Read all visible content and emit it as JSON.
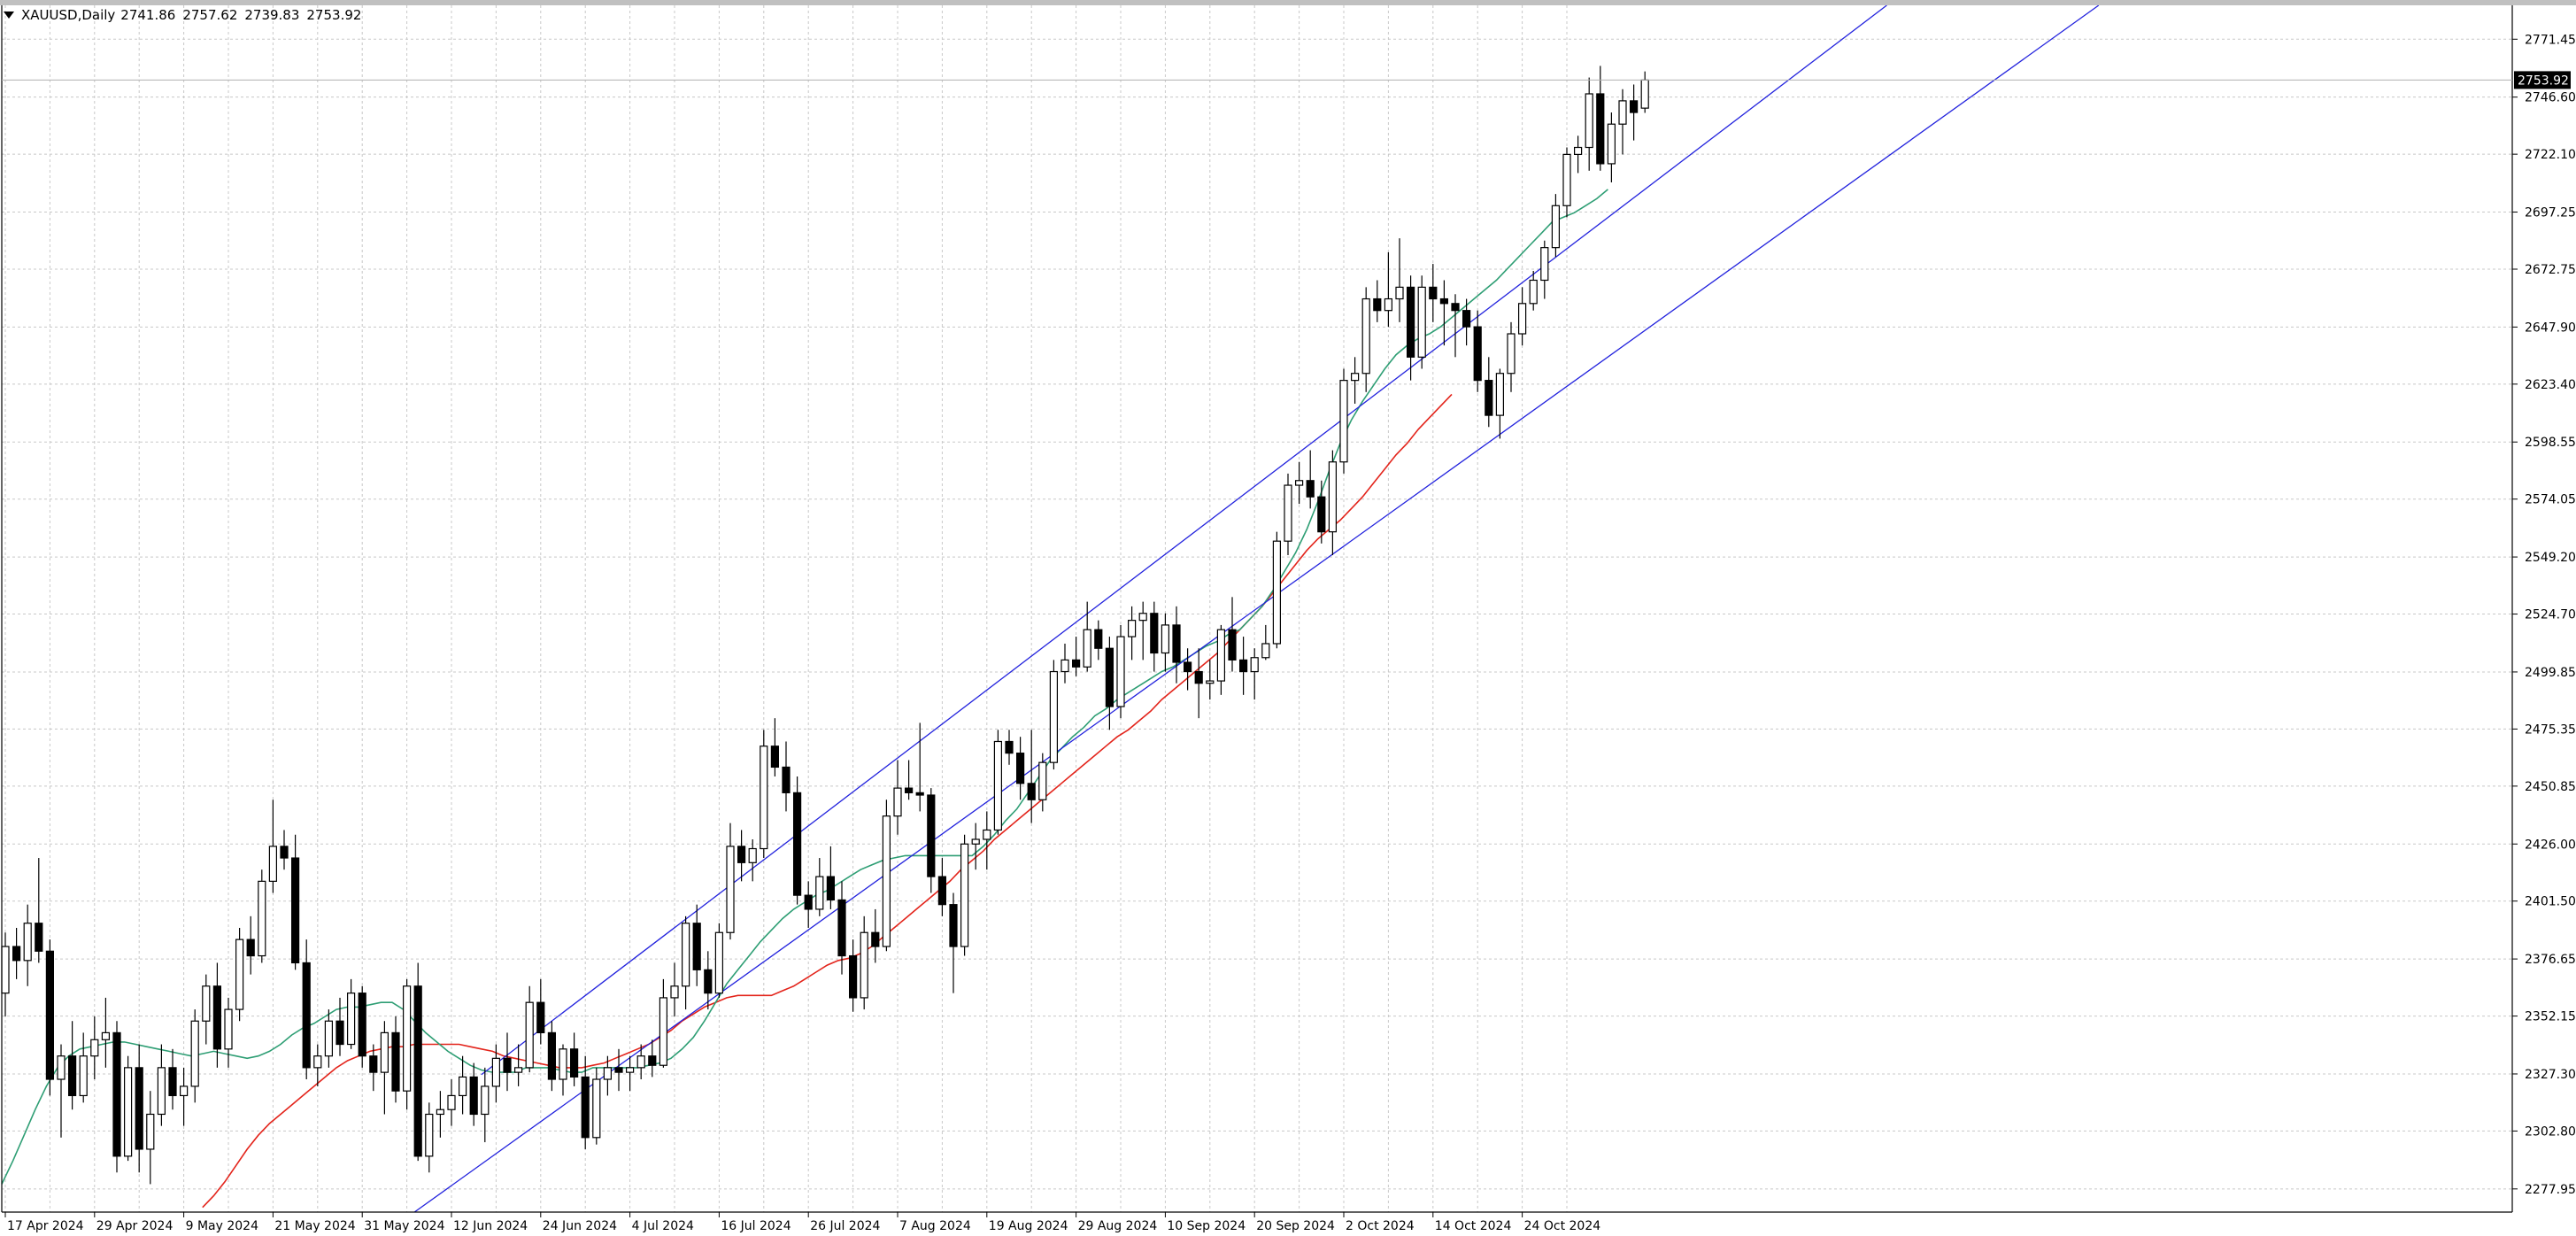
{
  "header": {
    "symbol_timeframe": "XAUUSD,Daily",
    "open": "2741.86",
    "high": "2757.62",
    "low": "2739.83",
    "close": "2753.92"
  },
  "colors": {
    "background": "#ffffff",
    "grid": "#c8c8c8",
    "candle_bull_fill": "#ffffff",
    "candle_bear_fill": "#000000",
    "candle_outline": "#000000",
    "ma_fast": "#2e9e74",
    "ma_slow": "#e3241b",
    "channel": "#2222dd",
    "price_label_bg": "#000000",
    "price_label_text": "#ffffff"
  },
  "chart_data": {
    "type": "candlestick",
    "symbol": "XAUUSD",
    "timeframe": "Daily",
    "grid": true,
    "y_ticks": [
      "2771.45",
      "2746.60",
      "2722.10",
      "2697.25",
      "2672.75",
      "2647.90",
      "2623.40",
      "2598.55",
      "2574.05",
      "2549.20",
      "2524.70",
      "2499.85",
      "2475.35",
      "2450.85",
      "2426.00",
      "2401.50",
      "2376.65",
      "2352.15",
      "2327.30",
      "2302.80",
      "2277.95"
    ],
    "ylim": [
      2268.0,
      2786.0
    ],
    "x_ticks": [
      {
        "label": "17 Apr 2024",
        "idx": 0
      },
      {
        "label": "29 Apr 2024",
        "idx": 8
      },
      {
        "label": "9 May 2024",
        "idx": 16
      },
      {
        "label": "21 May 2024",
        "idx": 24
      },
      {
        "label": "31 May 2024",
        "idx": 32
      },
      {
        "label": "12 Jun 2024",
        "idx": 40
      },
      {
        "label": "24 Jun 2024",
        "idx": 48
      },
      {
        "label": "4 Jul 2024",
        "idx": 56
      },
      {
        "label": "16 Jul 2024",
        "idx": 64
      },
      {
        "label": "26 Jul 2024",
        "idx": 72
      },
      {
        "label": "7 Aug 2024",
        "idx": 80
      },
      {
        "label": "19 Aug 2024",
        "idx": 88
      },
      {
        "label": "29 Aug 2024",
        "idx": 96
      },
      {
        "label": "10 Sep 2024",
        "idx": 104
      },
      {
        "label": "20 Sep 2024",
        "idx": 112
      },
      {
        "label": "2 Oct 2024",
        "idx": 120
      },
      {
        "label": "14 Oct 2024",
        "idx": 128
      },
      {
        "label": "24 Oct 2024",
        "idx": 136
      }
    ],
    "current_price": "2753.92",
    "candles": [
      [
        2362,
        2388,
        2352,
        2382
      ],
      [
        2382,
        2390,
        2368,
        2376
      ],
      [
        2376,
        2400,
        2365,
        2392
      ],
      [
        2392,
        2420,
        2375,
        2380
      ],
      [
        2380,
        2385,
        2318,
        2325
      ],
      [
        2325,
        2340,
        2300,
        2335
      ],
      [
        2335,
        2350,
        2312,
        2318
      ],
      [
        2318,
        2345,
        2315,
        2335
      ],
      [
        2335,
        2352,
        2325,
        2342
      ],
      [
        2342,
        2360,
        2330,
        2345
      ],
      [
        2345,
        2350,
        2285,
        2292
      ],
      [
        2292,
        2335,
        2290,
        2330
      ],
      [
        2330,
        2340,
        2285,
        2295
      ],
      [
        2295,
        2320,
        2280,
        2310
      ],
      [
        2310,
        2340,
        2305,
        2330
      ],
      [
        2330,
        2338,
        2312,
        2318
      ],
      [
        2318,
        2330,
        2305,
        2322
      ],
      [
        2322,
        2355,
        2315,
        2350
      ],
      [
        2350,
        2370,
        2340,
        2365
      ],
      [
        2365,
        2375,
        2330,
        2338
      ],
      [
        2338,
        2360,
        2330,
        2355
      ],
      [
        2355,
        2390,
        2350,
        2385
      ],
      [
        2385,
        2395,
        2370,
        2378
      ],
      [
        2378,
        2415,
        2375,
        2410
      ],
      [
        2410,
        2445,
        2405,
        2425
      ],
      [
        2425,
        2432,
        2415,
        2420
      ],
      [
        2420,
        2430,
        2372,
        2375
      ],
      [
        2375,
        2385,
        2325,
        2330
      ],
      [
        2330,
        2340,
        2322,
        2335
      ],
      [
        2335,
        2355,
        2330,
        2350
      ],
      [
        2350,
        2360,
        2335,
        2340
      ],
      [
        2340,
        2368,
        2338,
        2362
      ],
      [
        2362,
        2365,
        2330,
        2335
      ],
      [
        2335,
        2340,
        2320,
        2328
      ],
      [
        2328,
        2350,
        2310,
        2345
      ],
      [
        2345,
        2352,
        2315,
        2320
      ],
      [
        2320,
        2368,
        2312,
        2365
      ],
      [
        2365,
        2375,
        2290,
        2292
      ],
      [
        2292,
        2315,
        2285,
        2310
      ],
      [
        2310,
        2320,
        2300,
        2312
      ],
      [
        2312,
        2325,
        2305,
        2318
      ],
      [
        2318,
        2335,
        2310,
        2326
      ],
      [
        2326,
        2332,
        2305,
        2310
      ],
      [
        2310,
        2330,
        2298,
        2322
      ],
      [
        2322,
        2340,
        2315,
        2334
      ],
      [
        2334,
        2345,
        2320,
        2328
      ],
      [
        2328,
        2340,
        2322,
        2330
      ],
      [
        2330,
        2365,
        2328,
        2358
      ],
      [
        2358,
        2368,
        2340,
        2345
      ],
      [
        2345,
        2350,
        2320,
        2325
      ],
      [
        2325,
        2340,
        2318,
        2338
      ],
      [
        2338,
        2345,
        2322,
        2326
      ],
      [
        2326,
        2335,
        2295,
        2300
      ],
      [
        2300,
        2330,
        2297,
        2325
      ],
      [
        2325,
        2335,
        2318,
        2330
      ],
      [
        2330,
        2338,
        2320,
        2328
      ],
      [
        2328,
        2335,
        2320,
        2330
      ],
      [
        2330,
        2340,
        2325,
        2335
      ],
      [
        2335,
        2342,
        2326,
        2331
      ],
      [
        2331,
        2368,
        2330,
        2360
      ],
      [
        2360,
        2375,
        2352,
        2365
      ],
      [
        2365,
        2395,
        2355,
        2392
      ],
      [
        2392,
        2400,
        2365,
        2372
      ],
      [
        2372,
        2380,
        2355,
        2362
      ],
      [
        2362,
        2392,
        2360,
        2388
      ],
      [
        2388,
        2435,
        2385,
        2425
      ],
      [
        2425,
        2432,
        2410,
        2418
      ],
      [
        2418,
        2428,
        2410,
        2424
      ],
      [
        2424,
        2475,
        2420,
        2468
      ],
      [
        2468,
        2480,
        2455,
        2459
      ],
      [
        2459,
        2470,
        2440,
        2448
      ],
      [
        2448,
        2455,
        2400,
        2404
      ],
      [
        2404,
        2410,
        2390,
        2398
      ],
      [
        2398,
        2420,
        2395,
        2412
      ],
      [
        2412,
        2425,
        2398,
        2402
      ],
      [
        2402,
        2410,
        2370,
        2378
      ],
      [
        2378,
        2385,
        2354,
        2360
      ],
      [
        2360,
        2395,
        2355,
        2388
      ],
      [
        2388,
        2398,
        2375,
        2382
      ],
      [
        2382,
        2445,
        2380,
        2438
      ],
      [
        2438,
        2462,
        2430,
        2450
      ],
      [
        2450,
        2462,
        2445,
        2448
      ],
      [
        2448,
        2478,
        2440,
        2447
      ],
      [
        2447,
        2450,
        2405,
        2412
      ],
      [
        2412,
        2420,
        2395,
        2400
      ],
      [
        2400,
        2405,
        2362,
        2382
      ],
      [
        2382,
        2430,
        2378,
        2426
      ],
      [
        2426,
        2435,
        2415,
        2428
      ],
      [
        2428,
        2440,
        2415,
        2432
      ],
      [
        2432,
        2475,
        2430,
        2470
      ],
      [
        2470,
        2475,
        2460,
        2465
      ],
      [
        2465,
        2472,
        2445,
        2452
      ],
      [
        2452,
        2475,
        2435,
        2445
      ],
      [
        2445,
        2465,
        2440,
        2461
      ],
      [
        2461,
        2505,
        2458,
        2500
      ],
      [
        2500,
        2512,
        2495,
        2505
      ],
      [
        2505,
        2515,
        2498,
        2502
      ],
      [
        2502,
        2530,
        2500,
        2518
      ],
      [
        2518,
        2522,
        2505,
        2510
      ],
      [
        2510,
        2515,
        2475,
        2485
      ],
      [
        2485,
        2520,
        2480,
        2515
      ],
      [
        2515,
        2528,
        2505,
        2522
      ],
      [
        2522,
        2530,
        2505,
        2525
      ],
      [
        2525,
        2530,
        2500,
        2508
      ],
      [
        2508,
        2525,
        2500,
        2520
      ],
      [
        2520,
        2528,
        2495,
        2504
      ],
      [
        2504,
        2510,
        2492,
        2500
      ],
      [
        2500,
        2510,
        2480,
        2495
      ],
      [
        2495,
        2505,
        2488,
        2496
      ],
      [
        2496,
        2520,
        2490,
        2518
      ],
      [
        2518,
        2532,
        2500,
        2505
      ],
      [
        2505,
        2515,
        2490,
        2500
      ],
      [
        2500,
        2510,
        2488,
        2506
      ],
      [
        2506,
        2520,
        2505,
        2512
      ],
      [
        2512,
        2560,
        2510,
        2556
      ],
      [
        2556,
        2585,
        2550,
        2580
      ],
      [
        2580,
        2590,
        2572,
        2582
      ],
      [
        2582,
        2595,
        2570,
        2575
      ],
      [
        2575,
        2582,
        2555,
        2560
      ],
      [
        2560,
        2595,
        2550,
        2590
      ],
      [
        2590,
        2630,
        2585,
        2625
      ],
      [
        2625,
        2635,
        2615,
        2628
      ],
      [
        2628,
        2665,
        2620,
        2660
      ],
      [
        2660,
        2668,
        2650,
        2655
      ],
      [
        2655,
        2680,
        2648,
        2660
      ],
      [
        2660,
        2686,
        2650,
        2665
      ],
      [
        2665,
        2670,
        2625,
        2635
      ],
      [
        2635,
        2670,
        2630,
        2665
      ],
      [
        2665,
        2675,
        2650,
        2660
      ],
      [
        2660,
        2668,
        2640,
        2658
      ],
      [
        2658,
        2662,
        2635,
        2655
      ],
      [
        2655,
        2660,
        2640,
        2648
      ],
      [
        2648,
        2655,
        2620,
        2625
      ],
      [
        2625,
        2635,
        2605,
        2610
      ],
      [
        2610,
        2630,
        2600,
        2628
      ],
      [
        2628,
        2650,
        2620,
        2645
      ],
      [
        2645,
        2665,
        2640,
        2658
      ],
      [
        2658,
        2672,
        2655,
        2668
      ],
      [
        2668,
        2685,
        2660,
        2682
      ],
      [
        2682,
        2705,
        2678,
        2700
      ],
      [
        2700,
        2725,
        2695,
        2722
      ],
      [
        2722,
        2730,
        2714,
        2725
      ],
      [
        2725,
        2755,
        2715,
        2748
      ],
      [
        2748,
        2760,
        2715,
        2718
      ],
      [
        2718,
        2740,
        2710,
        2735
      ],
      [
        2735,
        2750,
        2722,
        2745
      ],
      [
        2745,
        2752,
        2728,
        2740
      ],
      [
        2741.86,
        2757.62,
        2739.83,
        2753.92
      ]
    ],
    "ma_fast_start_idx": 0,
    "ma_fast_values": [
      2280,
      2290,
      2301,
      2312,
      2322,
      2330,
      2335,
      2338,
      2339,
      2340,
      2341,
      2341,
      2340,
      2339,
      2338,
      2337,
      2336,
      2335,
      2336,
      2337,
      2336,
      2335,
      2334,
      2335,
      2337,
      2340,
      2344,
      2347,
      2349,
      2352,
      2355,
      2356,
      2356,
      2357,
      2358,
      2358,
      2355,
      2350,
      2345,
      2341,
      2337,
      2334,
      2331,
      2329,
      2328,
      2328,
      2328,
      2330,
      2330,
      2330,
      2329,
      2328,
      2328,
      2330,
      2330,
      2330,
      2330,
      2330,
      2331,
      2332,
      2334,
      2338,
      2343,
      2350,
      2358,
      2366,
      2372,
      2378,
      2384,
      2389,
      2394,
      2398,
      2401,
      2404,
      2406,
      2409,
      2412,
      2415,
      2417,
      2419,
      2420,
      2421,
      2421,
      2421,
      2421,
      2421,
      2421,
      2421,
      2425,
      2430,
      2436,
      2441,
      2448,
      2455,
      2462,
      2467,
      2472,
      2476,
      2481,
      2484,
      2488,
      2491,
      2494,
      2497,
      2500,
      2502,
      2505,
      2508,
      2511,
      2513,
      2516,
      2518,
      2523,
      2528,
      2535,
      2543,
      2551,
      2561,
      2573,
      2586,
      2598,
      2608,
      2616,
      2623,
      2630,
      2636,
      2640,
      2643,
      2645,
      2648,
      2652,
      2656,
      2660,
      2664,
      2668,
      2673,
      2678,
      2683,
      2688,
      2693,
      2695,
      2697,
      2700,
      2703,
      2707
    ],
    "ma_slow_start_idx": 18,
    "ma_slow_values": [
      2270,
      2275,
      2281,
      2288,
      2295,
      2301,
      2306,
      2310,
      2314,
      2318,
      2322,
      2326,
      2330,
      2333,
      2335,
      2337,
      2338,
      2339,
      2339,
      2340,
      2340,
      2340,
      2340,
      2340,
      2339,
      2338,
      2337,
      2335,
      2334,
      2333,
      2332,
      2331,
      2330,
      2330,
      2330,
      2331,
      2332,
      2334,
      2336,
      2338,
      2340,
      2343,
      2346,
      2350,
      2353,
      2356,
      2358,
      2360,
      2361,
      2361,
      2361,
      2361,
      2363,
      2365,
      2368,
      2371,
      2374,
      2376,
      2377,
      2379,
      2382,
      2386,
      2390,
      2394,
      2398,
      2402,
      2406,
      2410,
      2415,
      2419,
      2423,
      2428,
      2432,
      2436,
      2440,
      2444,
      2448,
      2452,
      2456,
      2460,
      2464,
      2468,
      2472,
      2475,
      2479,
      2483,
      2488,
      2492,
      2496,
      2500,
      2504,
      2508,
      2513,
      2518,
      2523,
      2528,
      2534,
      2540,
      2546,
      2552,
      2557,
      2561,
      2565,
      2570,
      2575,
      2581,
      2587,
      2593,
      2598,
      2604,
      2609,
      2614,
      2619
    ],
    "channel_lines": [
      {
        "from_idx": 43,
        "from_price": 2327,
        "to_idx": 169,
        "to_price": 2786
      },
      {
        "from_idx": 37,
        "from_price": 2268,
        "to_idx": 188,
        "to_price": 2786
      }
    ]
  }
}
